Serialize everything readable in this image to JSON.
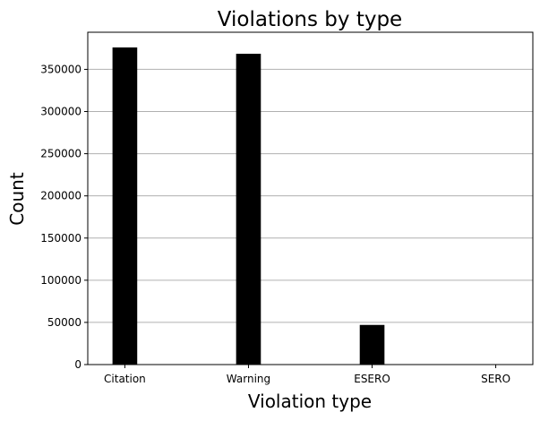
{
  "chart_data": {
    "type": "bar",
    "title": "Violations by type",
    "xlabel": "Violation type",
    "ylabel": "Count",
    "categories": [
      "Citation",
      "Warning",
      "ESERO",
      "SERO"
    ],
    "values": [
      376000,
      368500,
      47000,
      500
    ],
    "ylim": [
      0,
      394000
    ],
    "yticks": [
      0,
      50000,
      100000,
      150000,
      200000,
      250000,
      300000,
      350000
    ],
    "ytick_labels": [
      "0",
      "50000",
      "100000",
      "150000",
      "200000",
      "250000",
      "300000",
      "350000"
    ],
    "grid": "y",
    "bar_color": "#000000",
    "grid_color": "#b0b0b0"
  }
}
